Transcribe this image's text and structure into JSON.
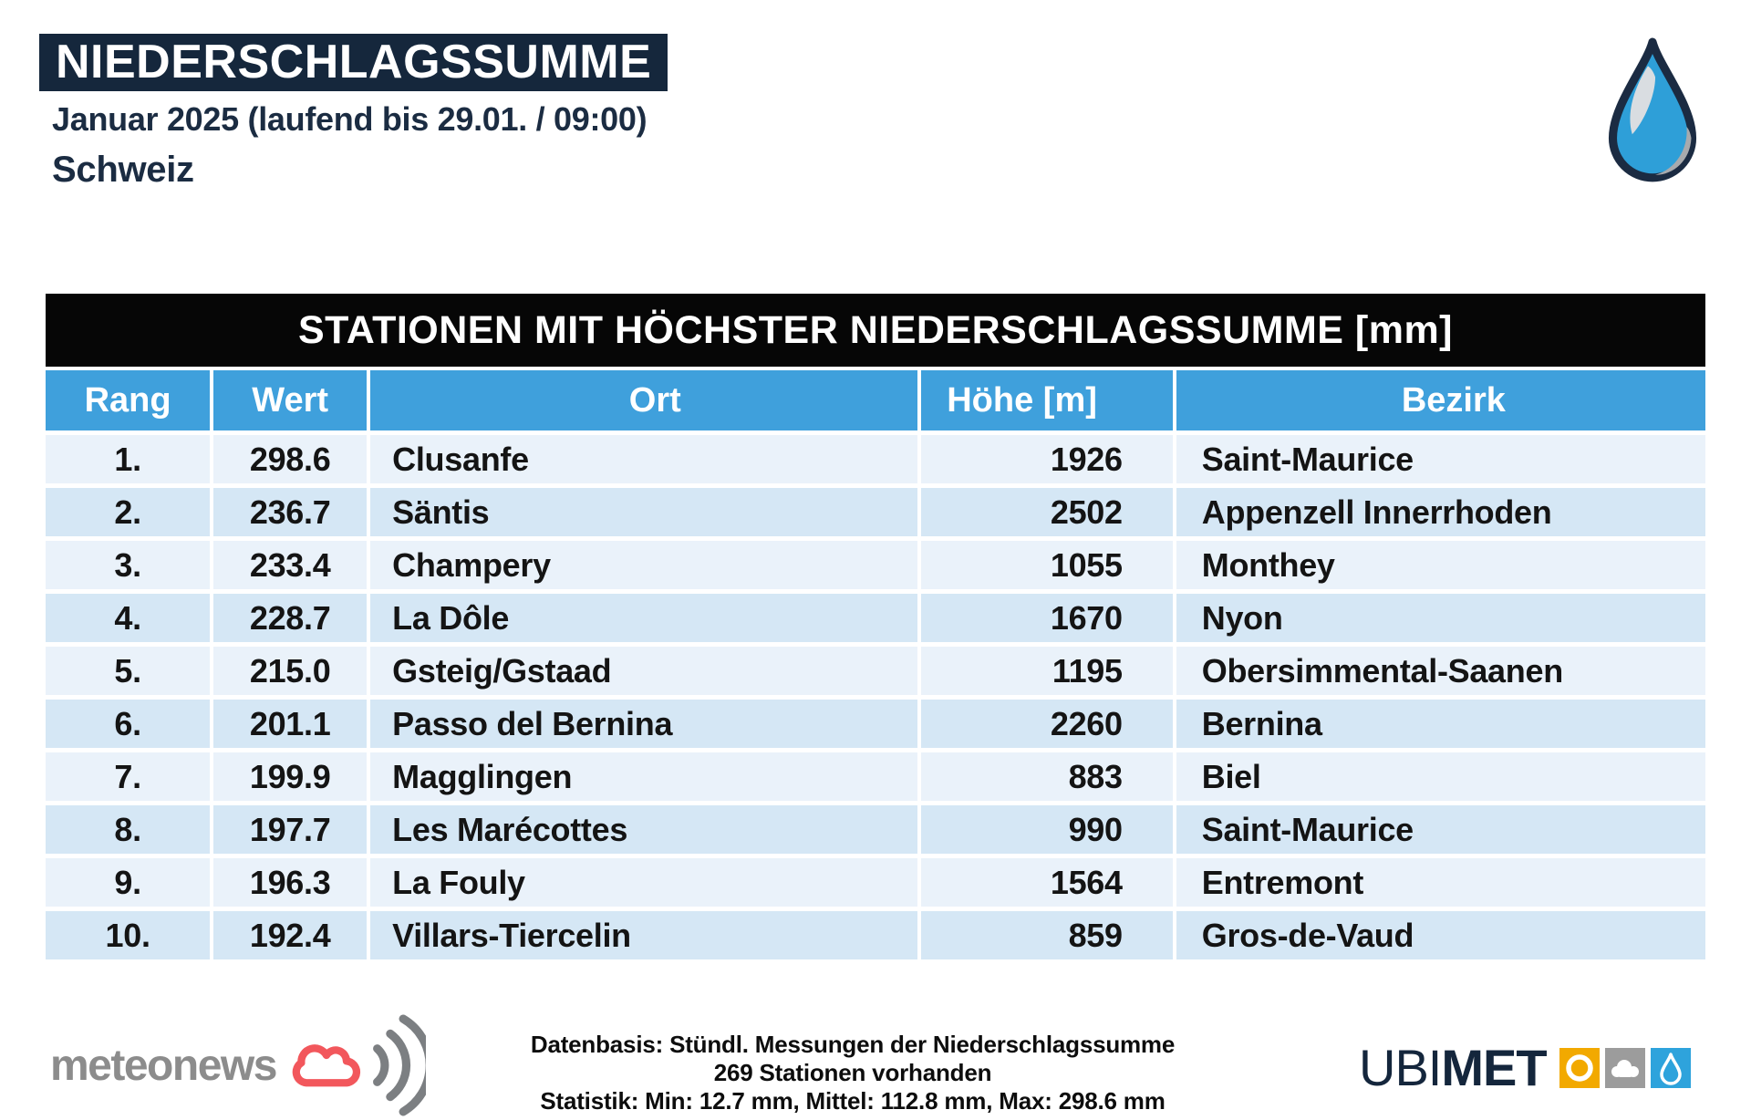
{
  "header": {
    "title": "NIEDERSCHLAGSSUMME",
    "subtitle": "Januar 2025 (laufend bis 29.01. / 09:00)",
    "region": "Schweiz"
  },
  "chart_data": {
    "type": "table",
    "title": "STATIONEN MIT HÖCHSTER NIEDERSCHLAGSSUMME [mm]",
    "unit": "mm",
    "columns": [
      "Rang",
      "Wert",
      "Ort",
      "Höhe [m]",
      "Bezirk"
    ],
    "rows": [
      [
        "1.",
        "298.6",
        "Clusanfe",
        "1926",
        "Saint-Maurice"
      ],
      [
        "2.",
        "236.7",
        "Säntis",
        "2502",
        "Appenzell Innerrhoden"
      ],
      [
        "3.",
        "233.4",
        "Champery",
        "1055",
        "Monthey"
      ],
      [
        "4.",
        "228.7",
        "La Dôle",
        "1670",
        "Nyon"
      ],
      [
        "5.",
        "215.0",
        "Gsteig/Gstaad",
        "1195",
        "Obersimmental-Saanen"
      ],
      [
        "6.",
        "201.1",
        "Passo del Bernina",
        "2260",
        "Bernina"
      ],
      [
        "7.",
        "199.9",
        "Magglingen",
        "883",
        "Biel"
      ],
      [
        "8.",
        "197.7",
        "Les Marécottes",
        "990",
        "Saint-Maurice"
      ],
      [
        "9.",
        "196.3",
        "La Fouly",
        "1564",
        "Entremont"
      ],
      [
        "10.",
        "192.4",
        "Villars-Tiercelin",
        "859",
        "Gros-de-Vaud"
      ]
    ]
  },
  "footer": {
    "brand_left": "meteonews",
    "note_line1": "Datenbasis: Stündl. Messungen der Niederschlagssumme",
    "note_line2": "269 Stationen vorhanden",
    "note_line3": "Statistik: Min: 12.7 mm, Mittel: 112.8 mm, Max: 298.6 mm",
    "brand_right_prefix": "UBI",
    "brand_right_suffix": "MET"
  },
  "icons": {
    "top_right": "water-drop-icon",
    "meteonews": [
      "cloud-outline-icon",
      "signal-waves-icon"
    ],
    "ubimet": [
      "sun-icon",
      "cloud-icon",
      "drop-icon"
    ]
  },
  "colors": {
    "navy": "#15273C",
    "table_band_black": "#060606",
    "table_header_blue": "#3FA0DC",
    "row_light": "#EAF2FA",
    "row_dark": "#D5E7F5",
    "drop_blue": "#2E9FD8",
    "meteonews_gray": "#8C8C8C",
    "meteonews_red": "#F2575C",
    "ubimet_yellow": "#F2A900",
    "ubimet_gray": "#9C9C9C",
    "ubimet_blue": "#2EA3DC"
  }
}
